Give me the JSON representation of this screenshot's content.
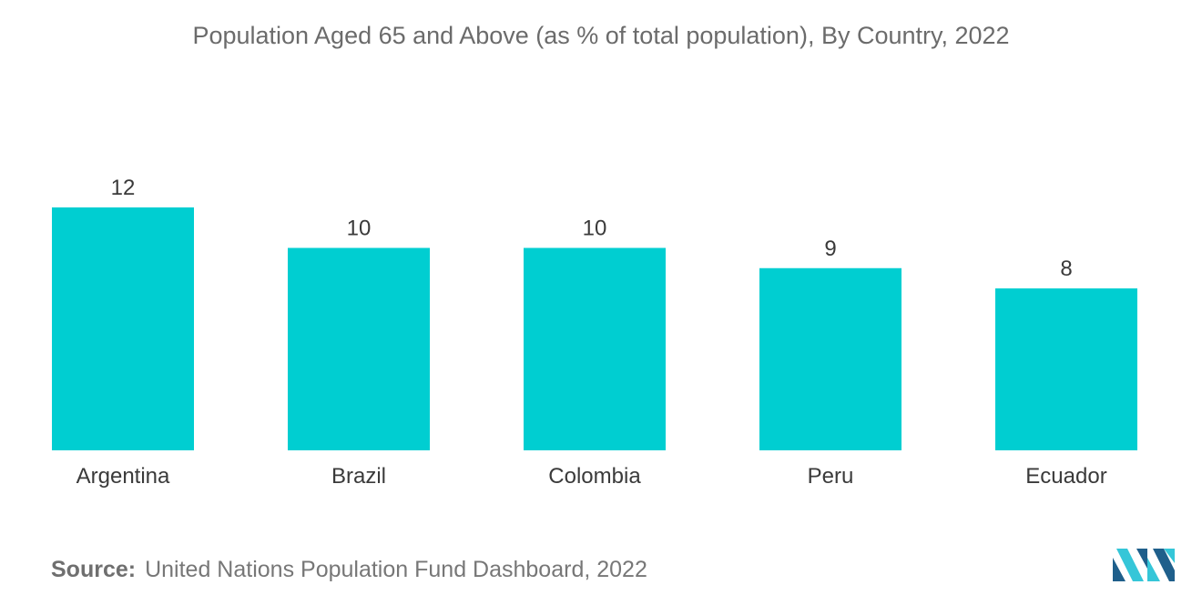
{
  "chart_data": {
    "type": "bar",
    "title": "Population Aged 65 and Above (as % of total population), By Country, 2022",
    "categories": [
      "Argentina",
      "Brazil",
      "Colombia",
      "Peru",
      "Ecuador"
    ],
    "values": [
      12,
      10,
      10,
      9,
      8
    ],
    "xlabel": "",
    "ylabel": "",
    "ylim": [
      0,
      12
    ],
    "grid": false,
    "legend": "none",
    "bar_color": "#00ced1"
  },
  "source": {
    "label": "Source:",
    "text": "United Nations Population Fund Dashboard, 2022"
  },
  "colors": {
    "title": "#6b6b6b",
    "label": "#3a3a3a",
    "logo_dark": "#1f5f8b",
    "logo_light": "#35c6d8"
  }
}
